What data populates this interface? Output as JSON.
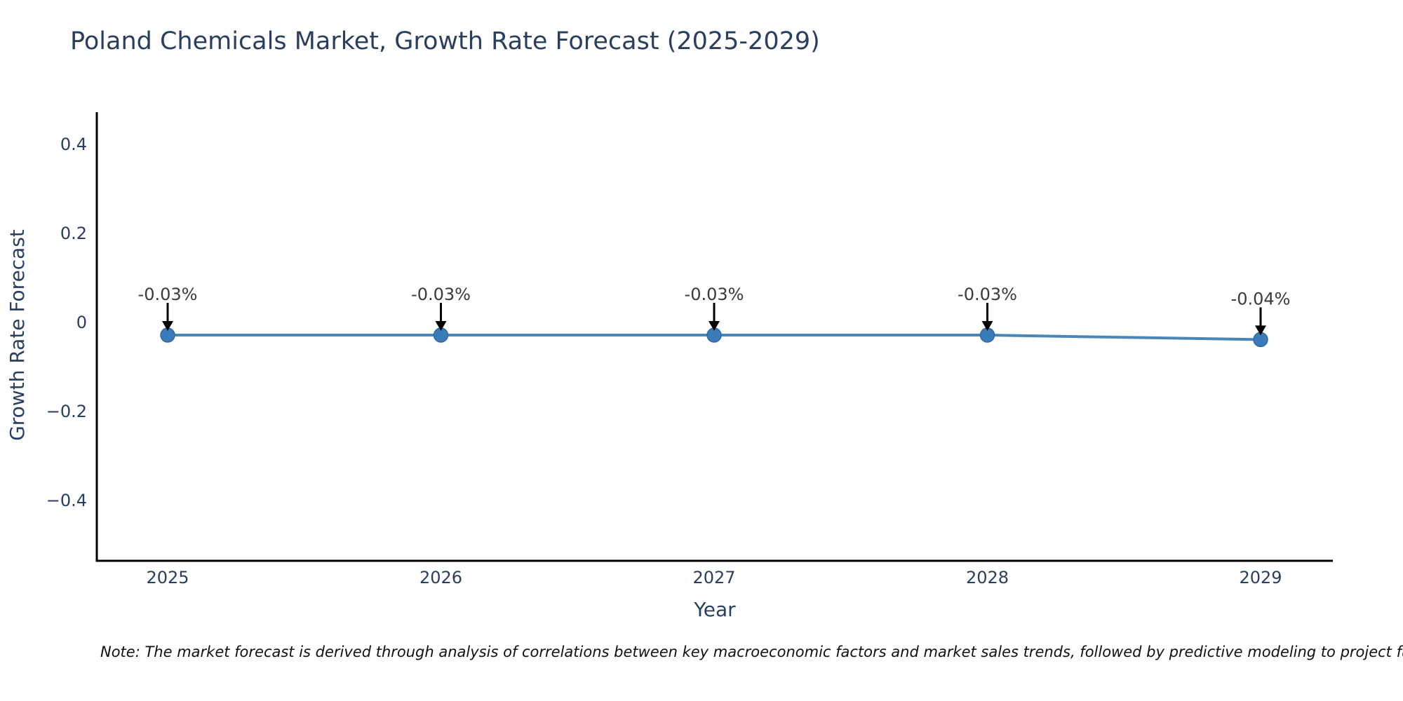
{
  "title": "Poland Chemicals Market, Growth Rate Forecast (2025-2029)",
  "note": "Note: The market forecast is derived through analysis of correlations between key macroeconomic factors and market sales trends, followed by predictive modeling to project future sales.",
  "chart_data": {
    "type": "line",
    "title": "Poland Chemicals Market, Growth Rate Forecast (2025-2029)",
    "xlabel": "Year",
    "ylabel": "Growth Rate Forecast",
    "categories": [
      "2025",
      "2026",
      "2027",
      "2028",
      "2029"
    ],
    "series": [
      {
        "name": "Growth Rate Forecast",
        "values": [
          -0.03,
          -0.03,
          -0.03,
          -0.03,
          -0.04
        ]
      }
    ],
    "point_labels": [
      "-0.03%",
      "-0.03%",
      "-0.03%",
      "-0.03%",
      "-0.04%"
    ],
    "ytick_values": [
      0.4,
      0.2,
      0,
      -0.2,
      -0.4
    ],
    "ytick_labels": [
      "0.4",
      "0.2",
      "0",
      "−0.2",
      "−0.4"
    ],
    "ylim": [
      -0.535,
      0.47
    ],
    "grid": false,
    "legend": false,
    "marker_style": "circle",
    "annotation_arrows": true,
    "colors": {
      "line": "#4a86b8",
      "marker": "#3a7cba",
      "marker_edge": "#31699f",
      "axis": "#000000",
      "tick_text": "#2a3f5f",
      "annotation_text": "#3a3a3a",
      "annotation_arrow": "#000000",
      "background": "#ffffff"
    }
  }
}
